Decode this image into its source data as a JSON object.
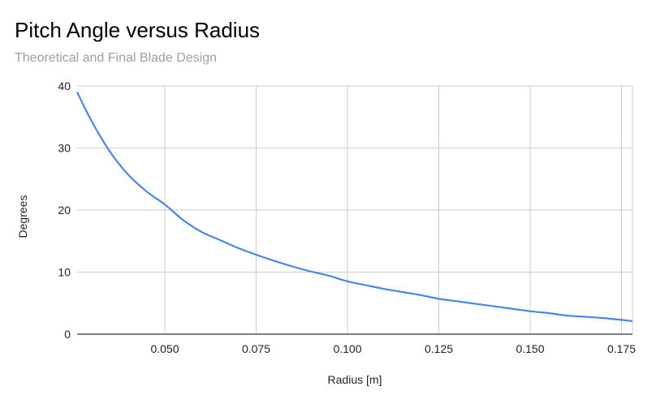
{
  "chart_data": {
    "type": "line",
    "title": "Pitch Angle versus Radius",
    "subtitle": "Theoretical and Final Blade Design",
    "xlabel": "Radius [m]",
    "ylabel": "Degrees",
    "xlim": [
      0.026,
      0.178
    ],
    "ylim": [
      0,
      40
    ],
    "x_ticks": [
      0.05,
      0.075,
      0.1,
      0.125,
      0.15,
      0.175
    ],
    "x_tick_labels": [
      "0.050",
      "0.075",
      "0.100",
      "0.125",
      "0.150",
      "0.175"
    ],
    "y_ticks": [
      0,
      10,
      20,
      30,
      40
    ],
    "y_tick_labels": [
      "0",
      "10",
      "20",
      "30",
      "40"
    ],
    "grid": true,
    "legend": "none",
    "color": "#4a86e8",
    "series": [
      {
        "x": [
          0.026,
          0.03,
          0.035,
          0.04,
          0.045,
          0.05,
          0.055,
          0.06,
          0.065,
          0.07,
          0.075,
          0.08,
          0.085,
          0.09,
          0.095,
          0.1,
          0.105,
          0.11,
          0.115,
          0.12,
          0.125,
          0.13,
          0.135,
          0.14,
          0.145,
          0.15,
          0.155,
          0.16,
          0.165,
          0.17,
          0.175,
          0.178
        ],
        "values": [
          39.0,
          34.3,
          29.4,
          25.7,
          23.0,
          20.9,
          18.4,
          16.5,
          15.2,
          13.9,
          12.8,
          11.8,
          10.9,
          10.1,
          9.4,
          8.5,
          7.9,
          7.3,
          6.8,
          6.3,
          5.7,
          5.3,
          4.9,
          4.5,
          4.1,
          3.7,
          3.4,
          3.0,
          2.8,
          2.6,
          2.3,
          2.1
        ]
      }
    ]
  }
}
